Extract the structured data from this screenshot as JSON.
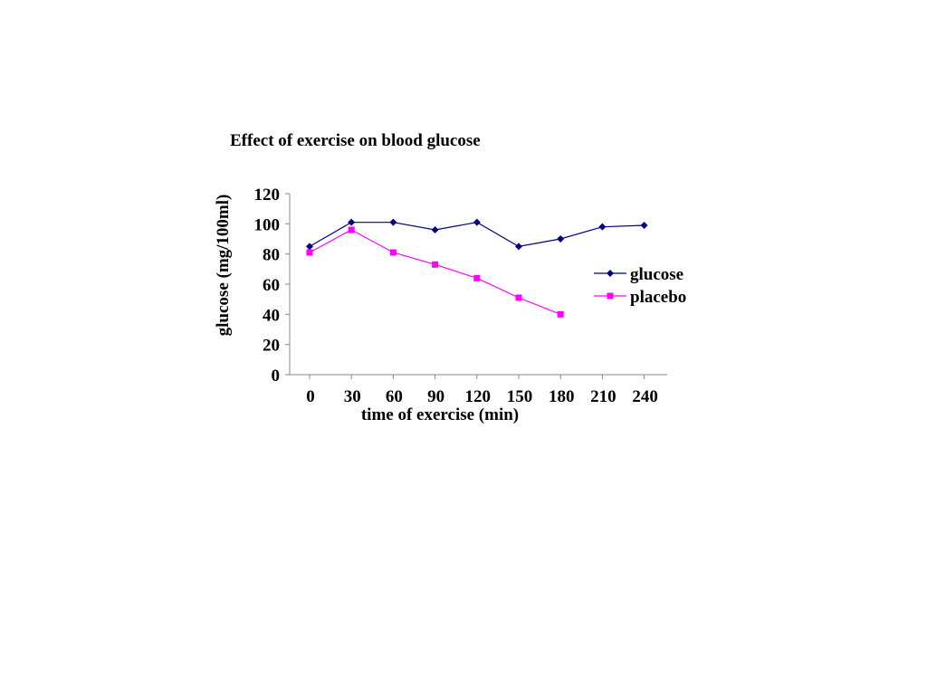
{
  "chart_data": {
    "type": "line",
    "title": "Effect of exercise on blood glucose",
    "xlabel": "time of exercise (min)",
    "ylabel": "glucose (mg/100ml)",
    "x": [
      0,
      30,
      60,
      90,
      120,
      150,
      180,
      210,
      240
    ],
    "x_tick_labels": [
      "0",
      "30",
      "60",
      "90",
      "120",
      "150",
      "180",
      "210",
      "240"
    ],
    "y_tick_labels": [
      "0",
      "20",
      "40",
      "60",
      "80",
      "100",
      "120"
    ],
    "ylim": [
      0,
      120
    ],
    "grid": false,
    "legend_position": "right",
    "series": [
      {
        "name": "glucose",
        "color": "#000080",
        "marker": "diamond",
        "values": [
          85,
          101,
          101,
          96,
          101,
          85,
          90,
          98,
          99
        ]
      },
      {
        "name": "placebo",
        "color": "#ff00ff",
        "marker": "square",
        "values": [
          81,
          96,
          81,
          73,
          64,
          51,
          40,
          null,
          null
        ]
      }
    ]
  }
}
